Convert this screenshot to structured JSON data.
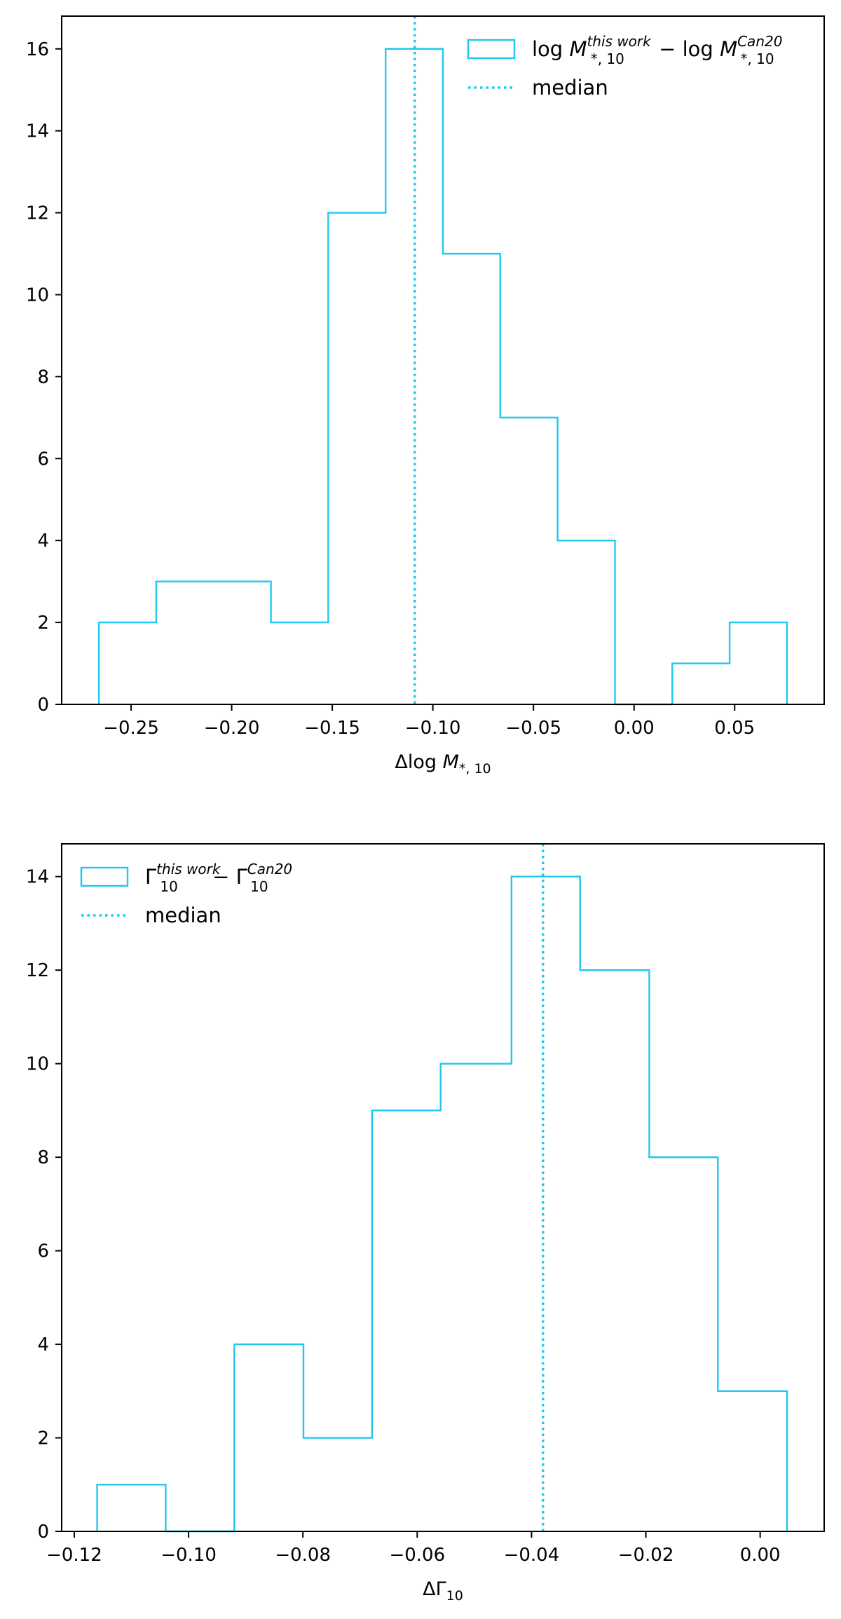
{
  "colors": {
    "series": "#1ec8f0",
    "axis": "#000000",
    "background": "#ffffff"
  },
  "chart_data": [
    {
      "type": "histogram",
      "xlabel_prefix": "Δlog ",
      "xlabel_var": "M",
      "xlabel_sub": "*, 10",
      "xlim": [
        -0.2845,
        0.0945
      ],
      "ylim": [
        0,
        16.8
      ],
      "xticks": [
        -0.25,
        -0.2,
        -0.15,
        -0.1,
        -0.05,
        0.0,
        0.05
      ],
      "xtick_labels": [
        "−0.25",
        "−0.20",
        "−0.15",
        "−0.10",
        "−0.05",
        "0.00",
        "0.05"
      ],
      "yticks": [
        0,
        2,
        4,
        6,
        8,
        10,
        12,
        14,
        16
      ],
      "ytick_labels": [
        "0",
        "2",
        "4",
        "6",
        "8",
        "10",
        "12",
        "14",
        "16"
      ],
      "bin_edges": [
        -0.266,
        -0.2375,
        -0.209,
        -0.1805,
        -0.152,
        -0.1235,
        -0.095,
        -0.0665,
        -0.038,
        -0.0095,
        0.019,
        0.0475,
        0.076
      ],
      "counts": [
        2,
        3,
        3,
        2,
        12,
        16,
        11,
        7,
        4,
        0,
        1,
        2
      ],
      "median": -0.109,
      "legend_position": "upper-right",
      "legend": {
        "series_lead": "log ",
        "series_var1": "M",
        "series_sup1": "this work",
        "series_sub1": "*, 10",
        "series_mid": " − log ",
        "series_var2": "M",
        "series_sup2": "Can20",
        "series_sub2": "*, 10",
        "median_label": "median"
      }
    },
    {
      "type": "histogram",
      "xlabel_prefix": "ΔΓ",
      "xlabel_var": "",
      "xlabel_sub": "10",
      "xlim": [
        -0.1222,
        0.0112
      ],
      "ylim": [
        0,
        14.7
      ],
      "xticks": [
        -0.12,
        -0.1,
        -0.08,
        -0.06,
        -0.04,
        -0.02,
        0.0
      ],
      "xtick_labels": [
        "−0.12",
        "−0.10",
        "−0.08",
        "−0.06",
        "−0.04",
        "−0.02",
        "0.00"
      ],
      "yticks": [
        0,
        2,
        4,
        6,
        8,
        10,
        12,
        14
      ],
      "ytick_labels": [
        "0",
        "2",
        "4",
        "6",
        "8",
        "10",
        "12",
        "14"
      ],
      "bin_edges": [
        -0.116,
        -0.104,
        -0.092,
        -0.0799,
        -0.0679,
        -0.0559,
        -0.0435,
        -0.0315,
        -0.0194,
        -0.0074,
        0.0047
      ],
      "counts": [
        1,
        0,
        4,
        2,
        9,
        10,
        14,
        12,
        8,
        3
      ],
      "median": -0.038,
      "legend_position": "upper-left",
      "legend": {
        "series_lead": "",
        "series_var1": "Γ",
        "series_sup1": "this work",
        "series_sub1": "10",
        "series_mid": " − ",
        "series_var2": "Γ",
        "series_sup2": "Can20",
        "series_sub2": "10",
        "median_label": "median"
      }
    }
  ]
}
